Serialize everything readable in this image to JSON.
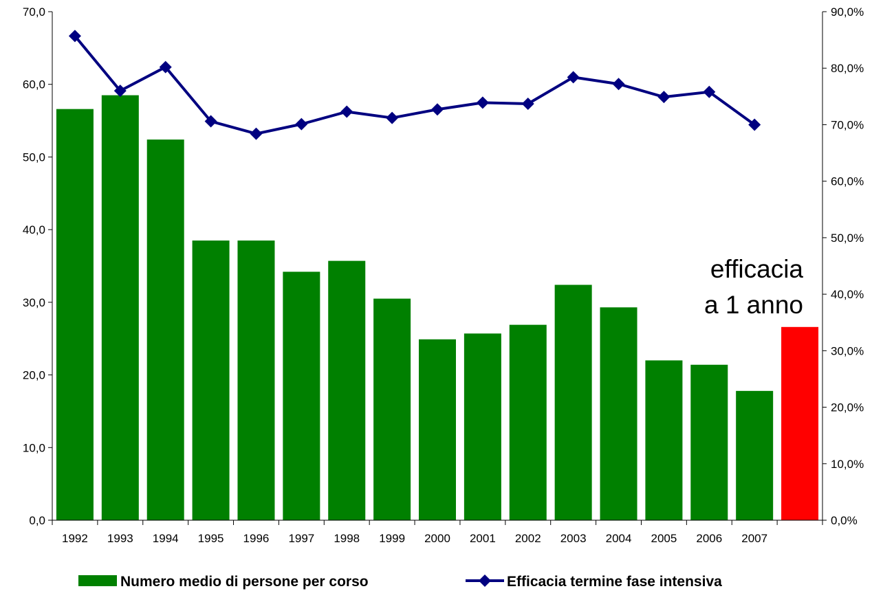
{
  "chart_data": {
    "type": "bar+line",
    "categories": [
      "1992",
      "1993",
      "1994",
      "1995",
      "1996",
      "1997",
      "1998",
      "1999",
      "2000",
      "2001",
      "2002",
      "2003",
      "2004",
      "2005",
      "2006",
      "2007",
      ""
    ],
    "series": [
      {
        "name": "Numero medio di persone per corso",
        "type": "bar",
        "axis": "left",
        "color": "#008000",
        "values": [
          56.6,
          58.5,
          52.4,
          38.5,
          38.5,
          34.2,
          35.7,
          30.5,
          24.9,
          25.7,
          26.9,
          32.4,
          29.3,
          22.0,
          21.4,
          17.8,
          null
        ]
      },
      {
        "name": "Efficacia termine fase intensiva",
        "type": "line",
        "axis": "right",
        "color": "#000080",
        "values": [
          85.7,
          76.0,
          80.2,
          70.6,
          68.4,
          70.1,
          72.3,
          71.2,
          72.7,
          73.9,
          73.7,
          78.4,
          77.2,
          74.9,
          75.8,
          70.0,
          null
        ]
      },
      {
        "name": "",
        "type": "bar",
        "axis": "left",
        "color": "#ff0000",
        "values": [
          null,
          null,
          null,
          null,
          null,
          null,
          null,
          null,
          null,
          null,
          null,
          null,
          null,
          null,
          null,
          null,
          26.6
        ]
      }
    ],
    "left_axis": {
      "ylim": [
        0,
        70
      ],
      "ticks": [
        "0,0",
        "10,0",
        "20,0",
        "30,0",
        "40,0",
        "50,0",
        "60,0",
        "70,0"
      ]
    },
    "right_axis": {
      "ylim": [
        0,
        90
      ],
      "ticks": [
        "0,0%",
        "10,0%",
        "20,0%",
        "30,0%",
        "40,0%",
        "50,0%",
        "60,0%",
        "70,0%",
        "80,0%",
        "90,0%"
      ]
    },
    "annotation": {
      "line1": "efficacia",
      "line2": "a 1 anno"
    },
    "legend": {
      "placement": "bottom",
      "entries": [
        "Numero medio di persone per corso",
        "Efficacia termine fase intensiva"
      ]
    },
    "grid": false
  }
}
